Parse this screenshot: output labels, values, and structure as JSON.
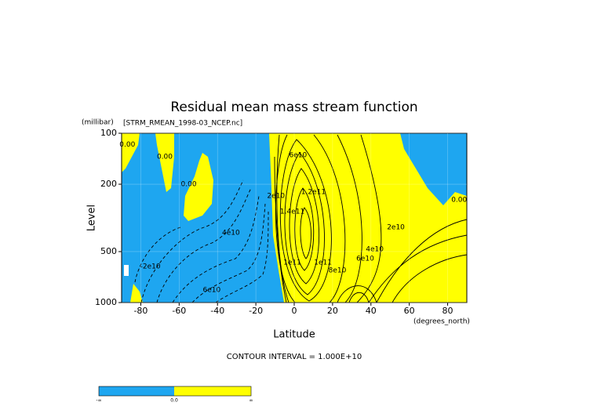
{
  "chart_data": {
    "type": "contour",
    "title": "Residual mean mass stream function",
    "subtitle": "[STRM_RMEAN_1998-03_NCEP.nc]",
    "x_label": "Latitude",
    "x_units": "(degrees_north)",
    "y_label": "Level",
    "y_units": "(millibar)",
    "footnote": "CONTOUR INTERVAL = 1.000E+10",
    "xlim": [
      -90,
      90
    ],
    "xticks": [
      -80,
      -60,
      -40,
      -20,
      0,
      20,
      40,
      60,
      80
    ],
    "ylim": [
      100,
      1000
    ],
    "yticks": [
      100,
      200,
      500,
      1000
    ],
    "log_y": true,
    "y_inverted": true,
    "grid": true,
    "colorbar": {
      "colors": [
        "#1ea6f0",
        "#ffff00"
      ],
      "labels": [
        "-∞",
        "0.0",
        "∞"
      ]
    },
    "contour_labels": [
      {
        "label": "0.00",
        "x": -87,
        "y": 117
      },
      {
        "label": "0.00",
        "x": -67.5,
        "y": 138
      },
      {
        "label": "0.00",
        "x": -55,
        "y": 200
      },
      {
        "label": "4e10",
        "x": -33,
        "y": 387
      },
      {
        "label": "-2e10",
        "x": -75,
        "y": 613
      },
      {
        "label": "6e10",
        "x": -43,
        "y": 842
      },
      {
        "label": "2e10",
        "x": -9.5,
        "y": 234
      },
      {
        "label": "6e10",
        "x": 2,
        "y": 135
      },
      {
        "label": "1.2e11",
        "x": 10,
        "y": 222
      },
      {
        "label": "1.4e11",
        "x": -1,
        "y": 290
      },
      {
        "label": "1e11",
        "x": -1,
        "y": 580
      },
      {
        "label": "1e11",
        "x": 15,
        "y": 580
      },
      {
        "label": "8e10",
        "x": 22.5,
        "y": 646
      },
      {
        "label": "6e10",
        "x": 37,
        "y": 550
      },
      {
        "label": "4e10",
        "x": 42,
        "y": 484
      },
      {
        "label": "2e10",
        "x": 53,
        "y": 359
      },
      {
        "label": "0.00",
        "x": 86,
        "y": 247
      }
    ]
  }
}
